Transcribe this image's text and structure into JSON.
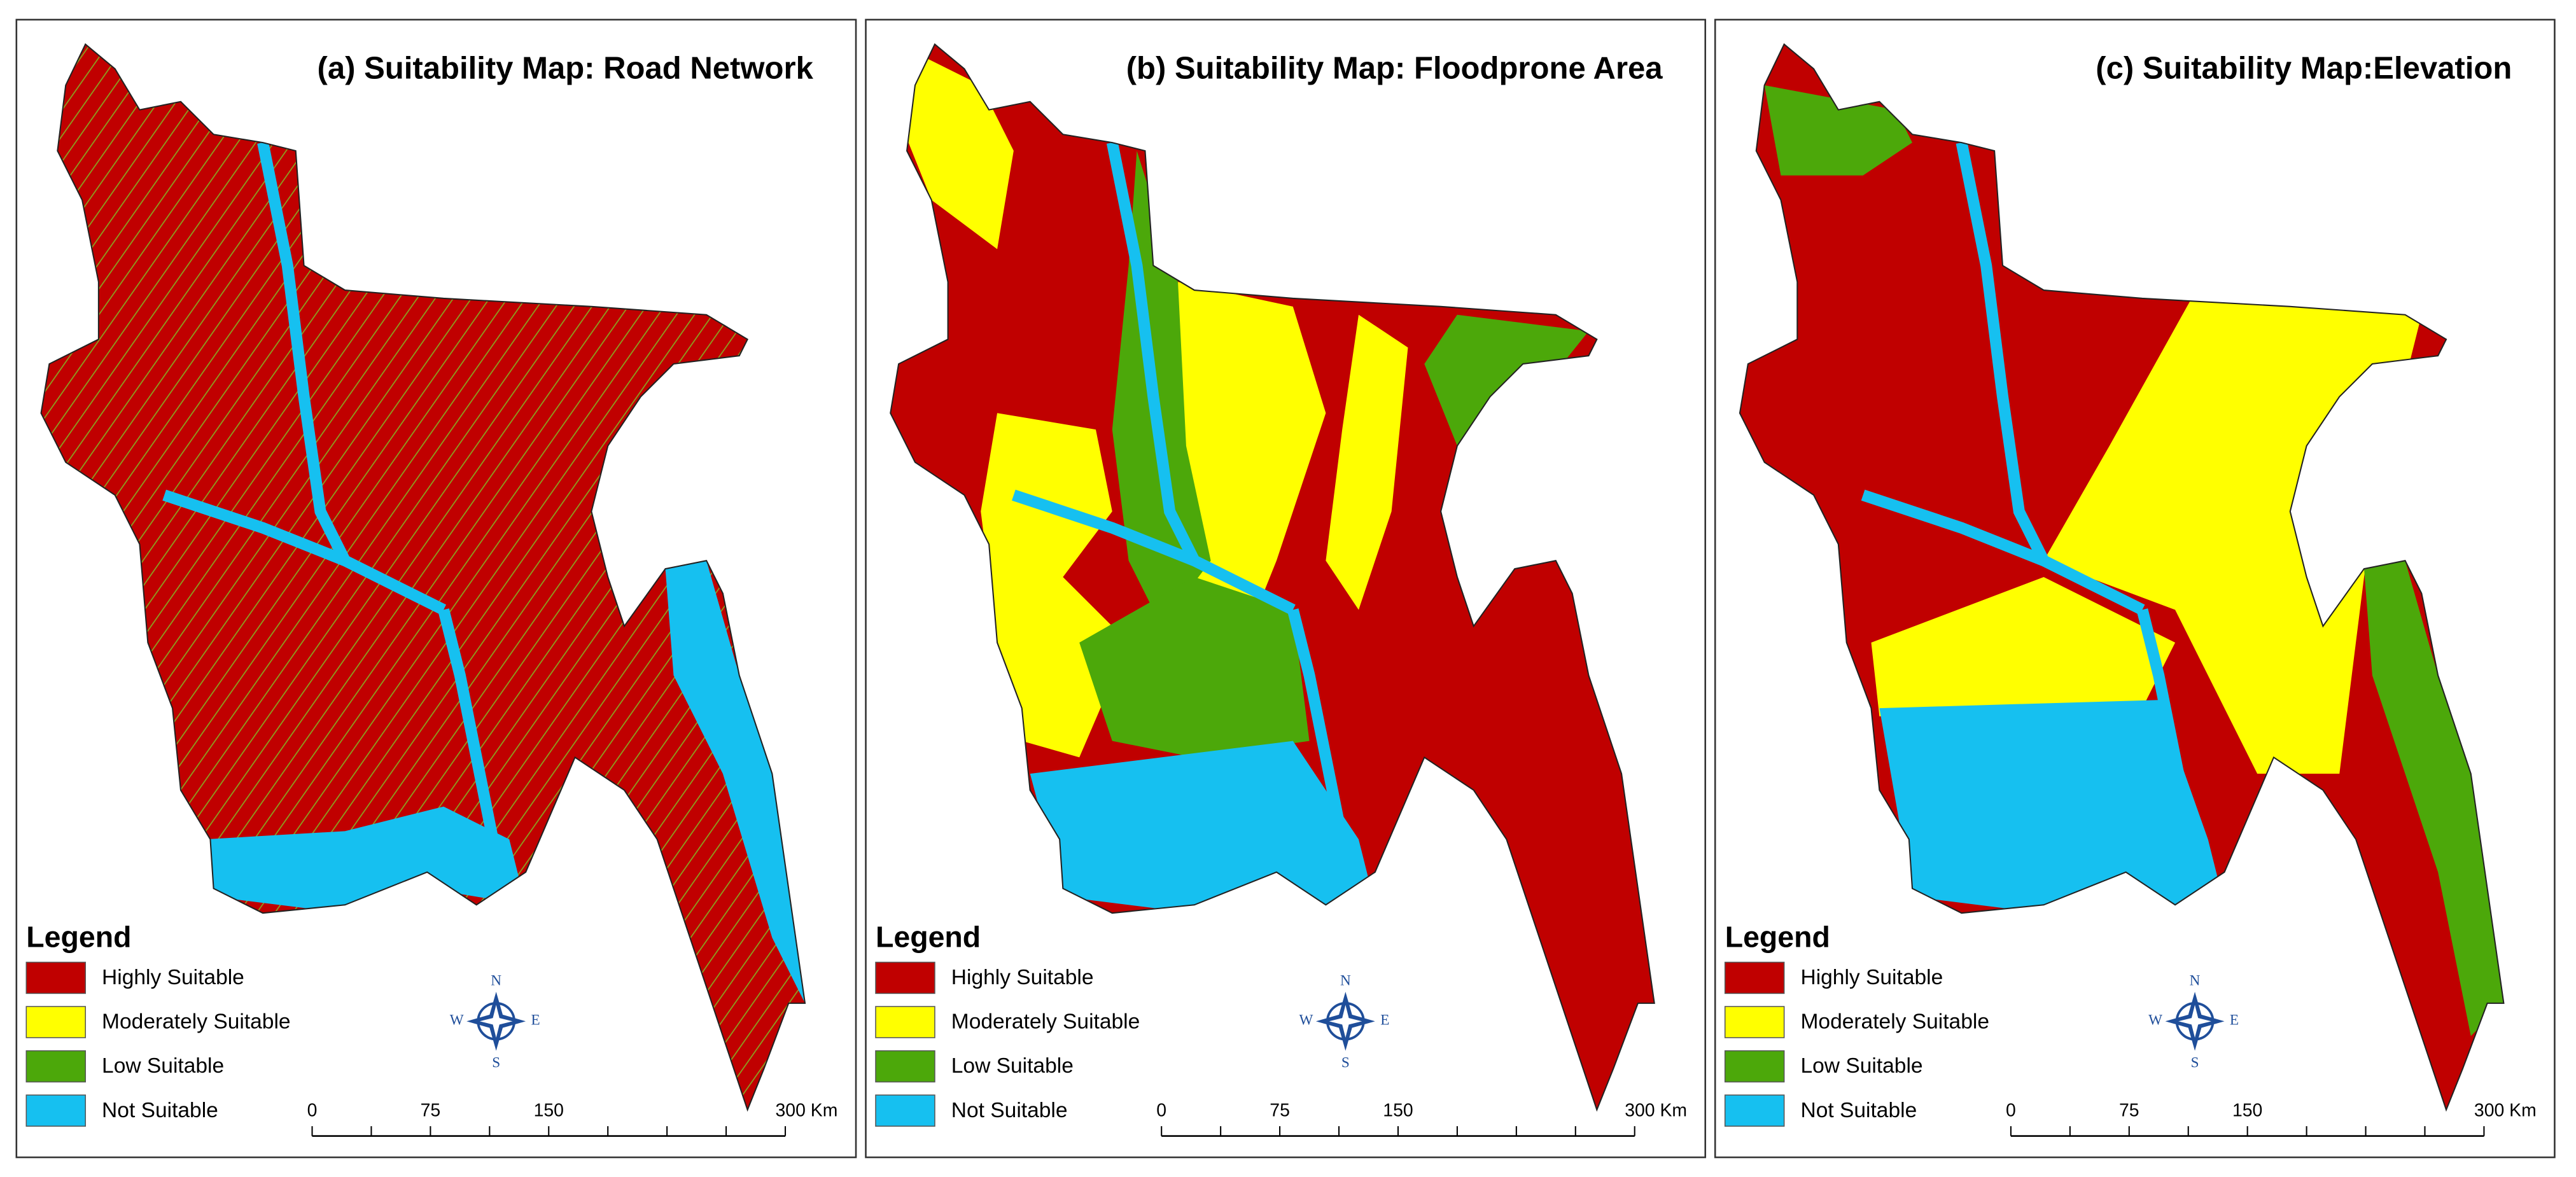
{
  "panels": [
    {
      "title": "(a) Suitability Map: Road Network",
      "legend_title": "Legend",
      "legend": [
        {
          "label": "Highly Suitable",
          "color": "#c00000"
        },
        {
          "label": "Moderately Suitable",
          "color": "#ffff00"
        },
        {
          "label": "Low Suitable",
          "color": "#4ca80a"
        },
        {
          "label": "Not Suitable",
          "color": "#16c0f0"
        }
      ],
      "scale_labels": [
        "0",
        "75",
        "150",
        "300 Km"
      ],
      "compass": {
        "n": "N",
        "e": "E",
        "s": "S",
        "w": "W"
      }
    },
    {
      "title": "(b) Suitability Map: Floodprone Area",
      "legend_title": "Legend",
      "legend": [
        {
          "label": "Highly Suitable",
          "color": "#c00000"
        },
        {
          "label": "Moderately Suitable",
          "color": "#ffff00"
        },
        {
          "label": "Low Suitable",
          "color": "#4ca80a"
        },
        {
          "label": "Not Suitable",
          "color": "#16c0f0"
        }
      ],
      "scale_labels": [
        "0",
        "75",
        "150",
        "300 Km"
      ],
      "compass": {
        "n": "N",
        "e": "E",
        "s": "S",
        "w": "W"
      }
    },
    {
      "title": "(c) Suitability Map:Elevation",
      "legend_title": "Legend",
      "legend": [
        {
          "label": "Highly Suitable",
          "color": "#c00000"
        },
        {
          "label": "Moderately Suitable",
          "color": "#ffff00"
        },
        {
          "label": "Low Suitable",
          "color": "#4ca80a"
        },
        {
          "label": "Not Suitable",
          "color": "#16c0f0"
        }
      ],
      "scale_labels": [
        "0",
        "75",
        "150",
        "300 Km"
      ],
      "compass": {
        "n": "N",
        "e": "E",
        "s": "S",
        "w": "W"
      }
    }
  ]
}
